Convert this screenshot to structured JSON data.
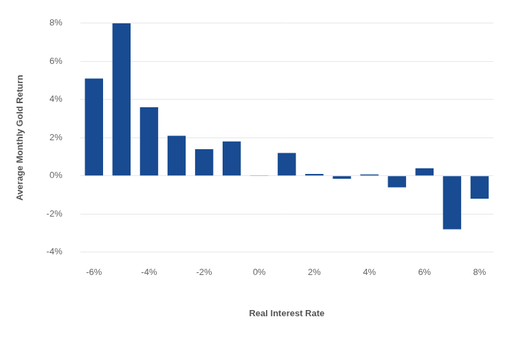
{
  "chart_data": {
    "type": "bar",
    "x_label": "Real Interest Rate",
    "y_label": "Average Monthly Gold Return",
    "categories": [
      "-6%",
      null,
      "-4%",
      null,
      "-2%",
      null,
      "0%",
      null,
      "2%",
      null,
      "4%",
      null,
      "6%",
      null,
      "8%"
    ],
    "values": [
      5.1,
      8.0,
      3.6,
      2.1,
      1.4,
      1.8,
      0.03,
      1.2,
      0.1,
      -0.15,
      0.07,
      -0.6,
      0.4,
      -2.8,
      -1.2
    ],
    "color": "#184b92",
    "ylim": [
      -4,
      8
    ],
    "yticks": [
      {
        "value": -4,
        "label": "-4%"
      },
      {
        "value": -2,
        "label": "-2%"
      },
      {
        "value": 0,
        "label": "0%"
      },
      {
        "value": 2,
        "label": "2%"
      },
      {
        "value": 4,
        "label": "4%"
      },
      {
        "value": 6,
        "label": "6%"
      },
      {
        "value": 8,
        "label": "8%"
      }
    ],
    "grid": true
  }
}
